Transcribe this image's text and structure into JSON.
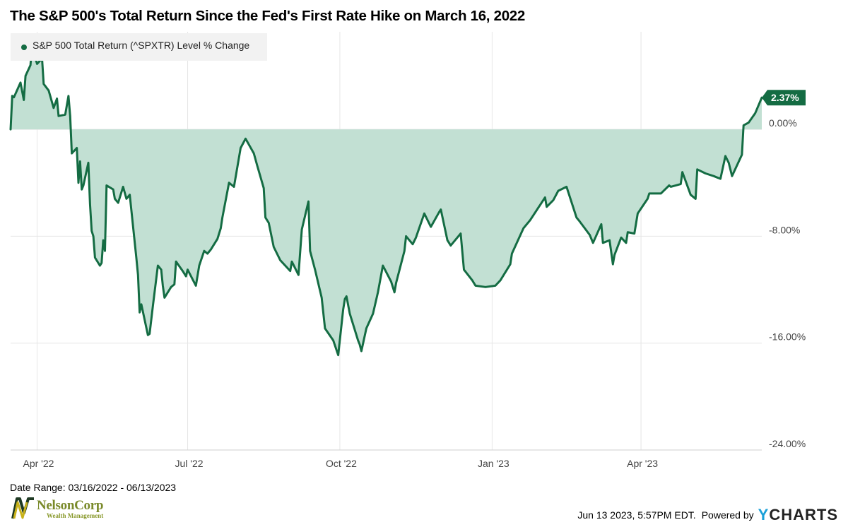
{
  "title": "The S&P 500's Total Return Since the Fed's First Rate Hike on March 16, 2022",
  "legend": {
    "label": "S&P 500 Total Return (^SPXTR) Level % Change"
  },
  "last_value_label": "2.37%",
  "footer": {
    "date_range": "Date Range: 03/16/2022 - 06/13/2023",
    "timestamp": "Jun 13 2023, 5:57PM EDT.",
    "powered_by": "Powered by",
    "brand_y": "Y",
    "brand_rest": "CHARTS"
  },
  "logo": {
    "name": "NelsonCorp",
    "subtitle": "Wealth Management"
  },
  "colors": {
    "line": "#146c43",
    "area": "#c2e0d3",
    "grid": "#e6e6e6",
    "badge": "#146c43"
  },
  "chart_data": {
    "type": "area",
    "title": "The S&P 500's Total Return Since the Fed's First Rate Hike on March 16, 2022",
    "series": [
      {
        "name": "S&P 500 Total Return (^SPXTR) Level % Change",
        "x": [
          "2022-03-16",
          "2022-03-17",
          "2022-03-18",
          "2022-03-22",
          "2022-03-24",
          "2022-03-25",
          "2022-03-28",
          "2022-03-29",
          "2022-03-30",
          "2022-04-01",
          "2022-04-04",
          "2022-04-05",
          "2022-04-08",
          "2022-04-11",
          "2022-04-13",
          "2022-04-14",
          "2022-04-18",
          "2022-04-20",
          "2022-04-21",
          "2022-04-22",
          "2022-04-25",
          "2022-04-26",
          "2022-04-27",
          "2022-04-28",
          "2022-04-29",
          "2022-05-02",
          "2022-05-03",
          "2022-05-04",
          "2022-05-05",
          "2022-05-06",
          "2022-05-09",
          "2022-05-10",
          "2022-05-11",
          "2022-05-12",
          "2022-05-13",
          "2022-05-17",
          "2022-05-18",
          "2022-05-20",
          "2022-05-23",
          "2022-05-25",
          "2022-05-27",
          "2022-05-31",
          "2022-06-01",
          "2022-06-02",
          "2022-06-03",
          "2022-06-07",
          "2022-06-08",
          "2022-06-10",
          "2022-06-13",
          "2022-06-15",
          "2022-06-16",
          "2022-06-17",
          "2022-06-21",
          "2022-06-23",
          "2022-06-24",
          "2022-06-28",
          "2022-06-30",
          "2022-07-01",
          "2022-07-06",
          "2022-07-08",
          "2022-07-11",
          "2022-07-13",
          "2022-07-15",
          "2022-07-19",
          "2022-07-21",
          "2022-07-22",
          "2022-07-26",
          "2022-07-27",
          "2022-07-29",
          "2022-08-02",
          "2022-08-05",
          "2022-08-10",
          "2022-08-12",
          "2022-08-16",
          "2022-08-17",
          "2022-08-19",
          "2022-08-22",
          "2022-08-26",
          "2022-09-01",
          "2022-09-02",
          "2022-09-06",
          "2022-09-08",
          "2022-09-12",
          "2022-09-13",
          "2022-09-16",
          "2022-09-20",
          "2022-09-22",
          "2022-09-27",
          "2022-09-30",
          "2022-10-03",
          "2022-10-04",
          "2022-10-05",
          "2022-10-07",
          "2022-10-12",
          "2022-10-13",
          "2022-10-14",
          "2022-10-17",
          "2022-10-21",
          "2022-10-24",
          "2022-10-27",
          "2022-11-01",
          "2022-11-03",
          "2022-11-04",
          "2022-11-09",
          "2022-11-10",
          "2022-11-14",
          "2022-11-16",
          "2022-11-21",
          "2022-11-25",
          "2022-11-30",
          "2022-12-01",
          "2022-12-05",
          "2022-12-07",
          "2022-12-13",
          "2022-12-15",
          "2022-12-20",
          "2022-12-22",
          "2022-12-28",
          "2023-01-03",
          "2023-01-06",
          "2023-01-12",
          "2023-01-13",
          "2023-01-20",
          "2023-01-24",
          "2023-02-02",
          "2023-02-03",
          "2023-02-07",
          "2023-02-10",
          "2023-02-15",
          "2023-02-21",
          "2023-02-23",
          "2023-03-01",
          "2023-03-03",
          "2023-03-08",
          "2023-03-09",
          "2023-03-13",
          "2023-03-15",
          "2023-03-16",
          "2023-03-20",
          "2023-03-23",
          "2023-03-24",
          "2023-03-28",
          "2023-03-30",
          "2023-04-05",
          "2023-04-06",
          "2023-04-13",
          "2023-04-18",
          "2023-04-19",
          "2023-04-25",
          "2023-04-26",
          "2023-05-01",
          "2023-05-04",
          "2023-05-05",
          "2023-05-10",
          "2023-05-15",
          "2023-05-19",
          "2023-05-22",
          "2023-05-24",
          "2023-05-26",
          "2023-06-01",
          "2023-06-02",
          "2023-06-05",
          "2023-06-09",
          "2023-06-13"
        ],
        "y": [
          0.0,
          2.5,
          2.4,
          3.5,
          2.2,
          4.0,
          4.8,
          6.2,
          5.7,
          4.9,
          5.3,
          3.4,
          2.9,
          1.6,
          2.3,
          1.0,
          1.1,
          2.5,
          1.0,
          -1.8,
          -1.4,
          -4.0,
          -2.4,
          -4.5,
          -4.2,
          -2.5,
          -5.6,
          -7.6,
          -8.0,
          -9.6,
          -10.2,
          -10.0,
          -8.3,
          -9.1,
          -4.2,
          -4.5,
          -5.2,
          -5.5,
          -4.3,
          -5.2,
          -4.9,
          -9.6,
          -10.9,
          -13.7,
          -13.1,
          -15.4,
          -15.3,
          -13.2,
          -10.2,
          -10.5,
          -11.7,
          -12.6,
          -11.8,
          -11.6,
          -9.9,
          -10.6,
          -11.0,
          -10.5,
          -11.7,
          -10.2,
          -9.1,
          -9.3,
          -9.0,
          -8.2,
          -7.4,
          -6.6,
          -4.0,
          -4.1,
          -4.3,
          -1.4,
          -0.7,
          -1.8,
          -2.7,
          -4.4,
          -6.6,
          -7.0,
          -8.8,
          -9.8,
          -10.6,
          -9.9,
          -10.9,
          -7.5,
          -5.4,
          -9.1,
          -10.5,
          -12.6,
          -14.9,
          -15.8,
          -16.9,
          -13.5,
          -12.7,
          -12.5,
          -13.8,
          -15.8,
          -16.1,
          -16.6,
          -14.9,
          -13.8,
          -12.2,
          -10.2,
          -11.4,
          -12.2,
          -11.5,
          -9.1,
          -8.0,
          -8.6,
          -8.1,
          -6.3,
          -7.3,
          -6.2,
          -6.0,
          -8.3,
          -8.7,
          -7.8,
          -10.5,
          -11.3,
          -11.7,
          -11.8,
          -11.7,
          -11.3,
          -10.1,
          -9.3,
          -7.4,
          -6.8,
          -5.1,
          -5.8,
          -5.3,
          -4.6,
          -4.3,
          -6.6,
          -6.9,
          -7.9,
          -8.5,
          -7.1,
          -8.5,
          -8.3,
          -10.1,
          -9.4,
          -8.1,
          -8.5,
          -7.7,
          -7.8,
          -6.3,
          -5.2,
          -4.8,
          -4.8,
          -4.2,
          -4.3,
          -4.1,
          -3.2,
          -4.9,
          -5.2,
          -3.0,
          -3.3,
          -3.5,
          -3.7,
          -2.0,
          -2.5,
          -3.5,
          -1.9,
          0.3,
          0.5,
          1.2,
          2.37
        ]
      }
    ],
    "xticks": [
      "Apr '22",
      "Jul '22",
      "Oct '22",
      "Jan '23",
      "Apr '23"
    ],
    "xtick_dates": [
      "2022-04-01",
      "2022-07-01",
      "2022-10-01",
      "2023-01-01",
      "2023-04-01"
    ],
    "xlim": [
      "2022-03-16",
      "2023-06-13"
    ],
    "yticks": [
      "0.00%",
      "-8.00%",
      "-16.00%",
      "-24.00%"
    ],
    "ytick_values": [
      0,
      -8,
      -16,
      -24
    ],
    "ylim": [
      -24,
      7.3
    ],
    "last_value": 2.37,
    "grid": true,
    "legend_position": "top-left",
    "y_axis_side": "right"
  }
}
